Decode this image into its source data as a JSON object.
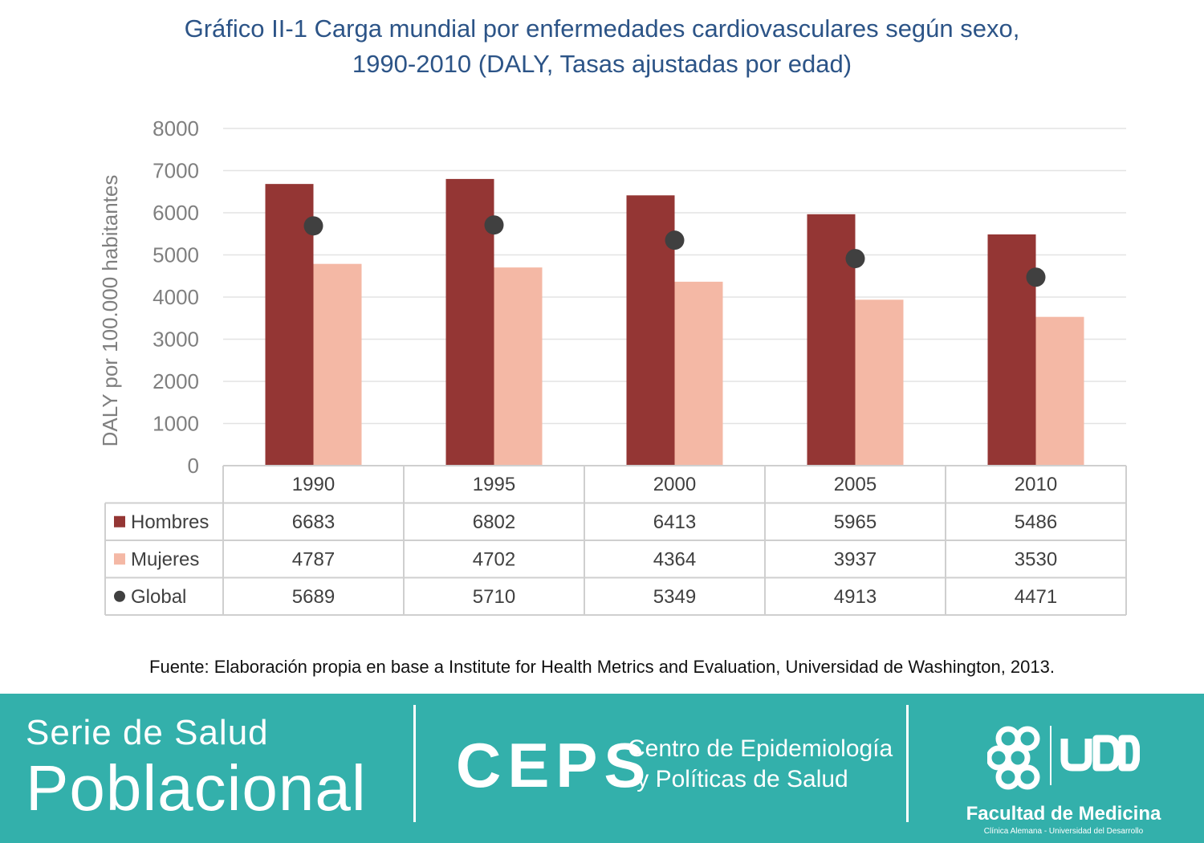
{
  "chart_data": {
    "type": "bar",
    "title_line1": "Gráfico II-1 Carga mundial por enfermedades cardiovasculares según sexo,",
    "title_line2": "1990-2010 (DALY, Tasas ajustadas por edad)",
    "ylabel": "DALY por 100.000 habitantes",
    "ylim": [
      0,
      8000
    ],
    "yticks": [
      "0",
      "1000",
      "2000",
      "3000",
      "4000",
      "5000",
      "6000",
      "7000",
      "8000"
    ],
    "categories": [
      "1990",
      "1995",
      "2000",
      "2005",
      "2010"
    ],
    "series": [
      {
        "name": "Hombres",
        "type": "bar",
        "color": "#943634",
        "values": [
          6683,
          6802,
          6413,
          5965,
          5486
        ]
      },
      {
        "name": "Mujeres",
        "type": "bar",
        "color": "#f4b8a5",
        "values": [
          4787,
          4702,
          4364,
          3937,
          3530
        ]
      },
      {
        "name": "Global",
        "type": "scatter",
        "color": "#404040",
        "values": [
          5689,
          5710,
          5349,
          4913,
          4471
        ]
      }
    ],
    "grid": true,
    "legend": "data-table"
  },
  "source": "Fuente: Elaboración propia en base a Institute for Health Metrics and Evaluation, Universidad de Washington, 2013.",
  "footer": {
    "serie_line1": "Serie de Salud",
    "serie_line2": "Poblacional",
    "ceps_logo": "CEPS",
    "ceps_line1": "Centro de Epidemiología",
    "ceps_line2": "y Políticas de Salud",
    "udd_logo": "UDD",
    "faculty": "Facultad de Medicina",
    "faculty_sub": "Clínica Alemana - Universidad del Desarrollo",
    "background": "#33b0ab"
  }
}
